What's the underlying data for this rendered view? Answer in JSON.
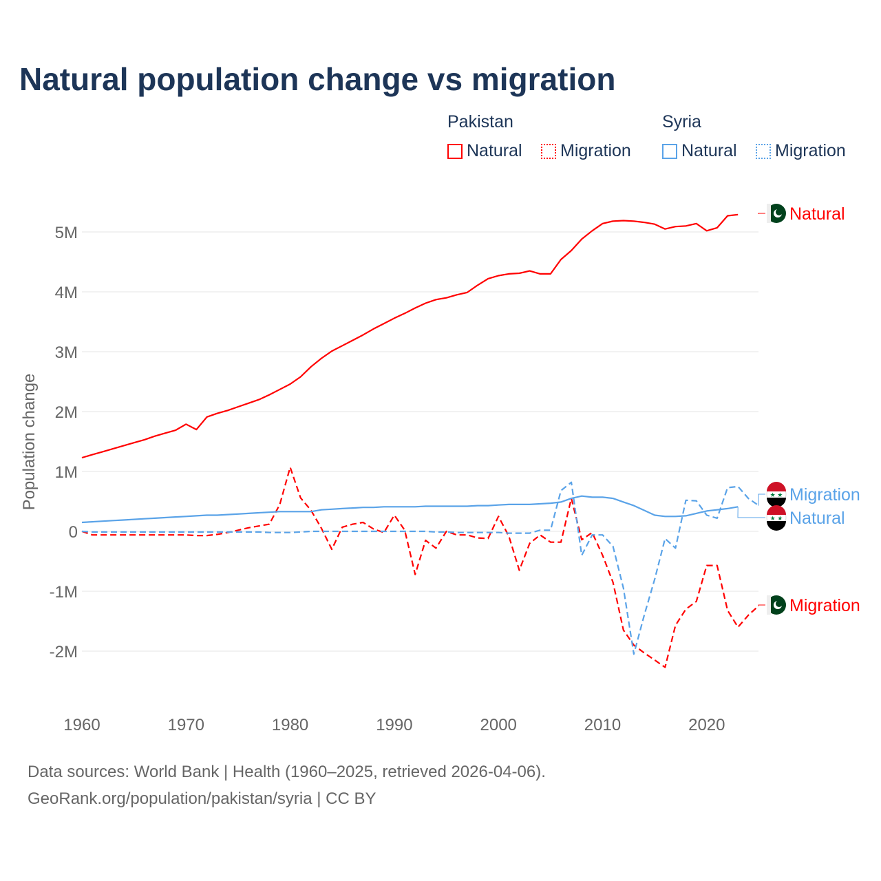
{
  "chart_data": {
    "type": "line",
    "title": "Natural population change vs migration",
    "ylabel": "Population change",
    "xlabel": "",
    "xlim": [
      1960,
      2025
    ],
    "ylim": [
      -2.5,
      5.5
    ],
    "y_unit": "millions",
    "x_ticks": [
      1960,
      1970,
      1980,
      1990,
      2000,
      2010,
      2020
    ],
    "y_ticks": [
      {
        "v": 5,
        "label": "5M"
      },
      {
        "v": 4,
        "label": "4M"
      },
      {
        "v": 3,
        "label": "3M"
      },
      {
        "v": 2,
        "label": "2M"
      },
      {
        "v": 1,
        "label": "1M"
      },
      {
        "v": 0,
        "label": "0"
      },
      {
        "v": -1,
        "label": "-1M"
      },
      {
        "v": -2,
        "label": "-2M"
      }
    ],
    "grid": true,
    "legend_placement": "top-right",
    "legend": {
      "groups": [
        {
          "name": "Pakistan",
          "items": [
            "Natural",
            "Migration"
          ]
        },
        {
          "name": "Syria",
          "items": [
            "Natural",
            "Migration"
          ]
        }
      ]
    },
    "series": [
      {
        "country": "Pakistan",
        "name": "Natural",
        "color": "#ff0000",
        "dash": false,
        "start": 1960,
        "values": [
          1.23,
          1.28,
          1.33,
          1.38,
          1.43,
          1.48,
          1.53,
          1.59,
          1.64,
          1.69,
          1.79,
          1.7,
          1.91,
          1.97,
          2.02,
          2.08,
          2.14,
          2.2,
          2.28,
          2.37,
          2.46,
          2.58,
          2.75,
          2.89,
          3.01,
          3.1,
          3.19,
          3.28,
          3.38,
          3.47,
          3.56,
          3.64,
          3.73,
          3.81,
          3.87,
          3.9,
          3.95,
          3.99,
          4.11,
          4.22,
          4.27,
          4.3,
          4.31,
          4.35,
          4.3,
          4.3,
          4.54,
          4.69,
          4.88,
          5.02,
          5.14,
          5.18,
          5.19,
          5.18,
          5.16,
          5.13,
          5.05,
          5.09,
          5.1,
          5.14,
          5.02,
          5.07,
          5.27,
          5.29
        ]
      },
      {
        "country": "Pakistan",
        "name": "Migration",
        "color": "#ff0000",
        "dash": true,
        "start": 1960,
        "values": [
          0,
          -0.06,
          -0.06,
          -0.06,
          -0.06,
          -0.06,
          -0.06,
          -0.06,
          -0.06,
          -0.06,
          -0.06,
          -0.07,
          -0.07,
          -0.05,
          -0.02,
          0.02,
          0.06,
          0.09,
          0.12,
          0.45,
          1.07,
          0.56,
          0.35,
          0.05,
          -0.3,
          0.07,
          0.12,
          0.15,
          0.04,
          -0.02,
          0.27,
          0.02,
          -0.72,
          -0.15,
          -0.28,
          0.0,
          -0.06,
          -0.06,
          -0.11,
          -0.12,
          0.25,
          -0.08,
          -0.65,
          -0.2,
          -0.06,
          -0.18,
          -0.18,
          0.55,
          -0.14,
          -0.02,
          -0.4,
          -0.85,
          -1.65,
          -1.9,
          -2.03,
          -2.15,
          -2.27,
          -1.57,
          -1.3,
          -1.17,
          -0.57,
          -0.57,
          -1.32,
          -1.6,
          -1.4,
          -1.24
        ]
      },
      {
        "country": "Syria",
        "name": "Natural",
        "color": "#5aa3e8",
        "dash": false,
        "start": 1960,
        "values": [
          0.15,
          0.16,
          0.17,
          0.18,
          0.19,
          0.2,
          0.21,
          0.22,
          0.23,
          0.24,
          0.25,
          0.26,
          0.27,
          0.27,
          0.28,
          0.29,
          0.3,
          0.31,
          0.32,
          0.33,
          0.33,
          0.33,
          0.33,
          0.36,
          0.37,
          0.38,
          0.39,
          0.4,
          0.4,
          0.41,
          0.41,
          0.41,
          0.41,
          0.42,
          0.42,
          0.42,
          0.42,
          0.42,
          0.43,
          0.43,
          0.44,
          0.45,
          0.45,
          0.45,
          0.46,
          0.47,
          0.49,
          0.55,
          0.59,
          0.57,
          0.57,
          0.55,
          0.49,
          0.43,
          0.35,
          0.27,
          0.25,
          0.25,
          0.26,
          0.3,
          0.34,
          0.36,
          0.38,
          0.41
        ]
      },
      {
        "country": "Syria",
        "name": "Migration",
        "color": "#5aa3e8",
        "dash": true,
        "start": 1960,
        "values": [
          0,
          -0.01,
          -0.01,
          -0.01,
          -0.01,
          -0.01,
          -0.01,
          -0.01,
          -0.01,
          -0.01,
          -0.01,
          -0.01,
          -0.01,
          -0.01,
          -0.01,
          -0.01,
          -0.01,
          -0.01,
          -0.02,
          -0.02,
          -0.02,
          -0.01,
          0.0,
          0.0,
          0.0,
          0.0,
          0.0,
          0.0,
          0.0,
          0.0,
          0.0,
          0.0,
          0.0,
          0.0,
          -0.01,
          -0.01,
          -0.02,
          -0.02,
          -0.02,
          -0.02,
          -0.02,
          -0.03,
          -0.03,
          -0.03,
          0.02,
          0.02,
          0.68,
          0.82,
          -0.4,
          -0.06,
          -0.06,
          -0.25,
          -0.95,
          -2.05,
          -1.4,
          -0.8,
          -0.12,
          -0.28,
          0.52,
          0.51,
          0.27,
          0.22,
          0.73,
          0.75,
          0.55,
          0.43
        ]
      }
    ],
    "end_labels": [
      {
        "country": "Pakistan",
        "text": "Natural",
        "flag": "pakistan-flag"
      },
      {
        "country": "Syria",
        "text": "Migration",
        "flag": "syria-flag"
      },
      {
        "country": "Syria",
        "text": "Natural",
        "flag": "syria-flag"
      },
      {
        "country": "Pakistan",
        "text": "Migration",
        "flag": "pakistan-flag"
      }
    ]
  },
  "legend": {
    "pakistan": "Pakistan",
    "syria": "Syria",
    "natural": "Natural",
    "migration": "Migration"
  },
  "source": {
    "line1": "Data sources: World Bank | Health (1960–2025, retrieved 2026-04-06).",
    "line2": "GeoRank.org/population/pakistan/syria | CC BY"
  }
}
